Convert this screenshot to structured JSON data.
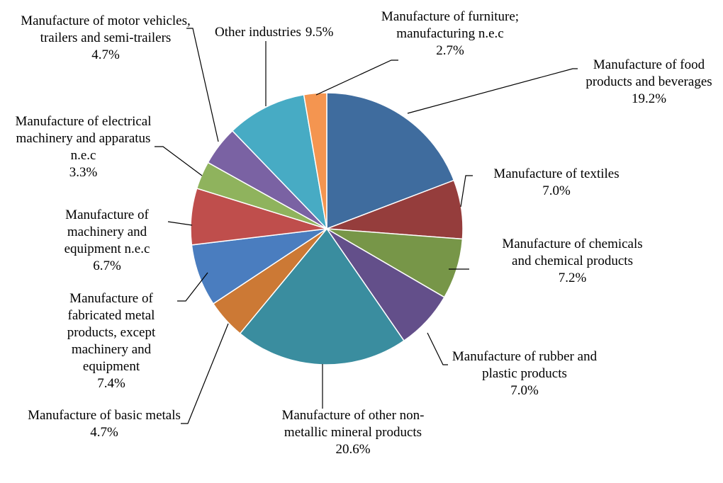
{
  "chart_data": {
    "type": "pie",
    "categories": [
      "Manufacture of food products and beverages",
      "Manufacture of textiles",
      "Manufacture of chemicals and chemical products",
      "Manufacture of rubber and plastic products",
      "Manufacture of other non-metallic mineral products",
      "Manufacture of basic metals",
      "Manufacture of fabricated metal products, except machinery and equipment",
      "Manufacture of machinery and equipment n.e.c",
      "Manufacture of electrical machinery and apparatus n.e.c",
      "Manufacture of motor vehicles, trailers and semi-trailers",
      "Other industries",
      "Manufacture of furniture; manufacturing n.e.c"
    ],
    "values": [
      19.2,
      7.0,
      7.2,
      7.0,
      20.6,
      4.7,
      7.4,
      6.7,
      3.3,
      4.7,
      9.5,
      2.7
    ],
    "value_labels": [
      "19.2%",
      "7.0%",
      "7.2%",
      "7.0%",
      "20.6%",
      "4.7%",
      "7.4%",
      "6.7%",
      "3.3%",
      "4.7%",
      "9.5%",
      "2.7%"
    ],
    "colors": [
      "#3f6c9e",
      "#953d3c",
      "#779648",
      "#634f8a",
      "#3a8d9f",
      "#cc7935",
      "#4a7dbf",
      "#bf4e4c",
      "#8fb35d",
      "#7a62a3",
      "#47abc4",
      "#f49550"
    ]
  }
}
